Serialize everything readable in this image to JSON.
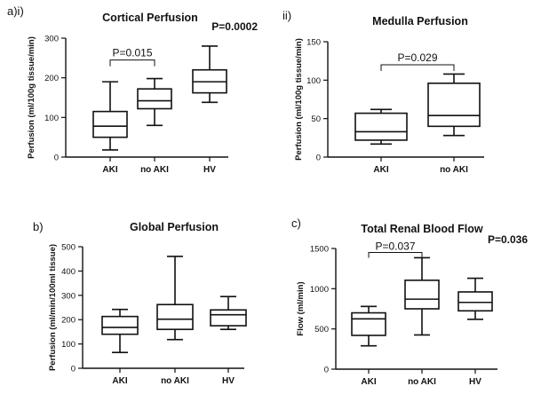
{
  "chart_data": [
    {
      "id": "cortical",
      "type": "box",
      "panel_letter": "a)i)",
      "title": "Cortical Perfusion",
      "ylabel": "Perfusion (ml/100g tissue/min)",
      "ylim": [
        0,
        300
      ],
      "yticks": [
        0,
        100,
        200,
        300
      ],
      "categories": [
        "AKI",
        "no AKI",
        "HV"
      ],
      "boxes": [
        {
          "min": 18,
          "q1": 50,
          "median": 78,
          "q3": 115,
          "max": 190
        },
        {
          "min": 80,
          "q1": 122,
          "median": 142,
          "q3": 172,
          "max": 198
        },
        {
          "min": 138,
          "q1": 162,
          "median": 190,
          "q3": 220,
          "max": 280
        }
      ],
      "brackets": [
        {
          "from": 0,
          "to": 1,
          "y": 245,
          "label": "P=0.015"
        }
      ],
      "corner_pvalue": "P=0.0002"
    },
    {
      "id": "medulla",
      "type": "box",
      "panel_letter": "ii)",
      "title": "Medulla Perfusion",
      "ylabel": "Perfusion (ml/100g tissue/min)",
      "ylim": [
        0,
        150
      ],
      "yticks": [
        0,
        50,
        100,
        150
      ],
      "categories": [
        "AKI",
        "no AKI"
      ],
      "boxes": [
        {
          "min": 17,
          "q1": 22,
          "median": 33,
          "q3": 57,
          "max": 62
        },
        {
          "min": 28,
          "q1": 40,
          "median": 54,
          "q3": 96,
          "max": 108
        }
      ],
      "brackets": [
        {
          "from": 0,
          "to": 1,
          "y": 120,
          "label": "P=0.029"
        }
      ],
      "corner_pvalue": ""
    },
    {
      "id": "global",
      "type": "box",
      "panel_letter": "b)",
      "title": "Global Perfusion",
      "ylabel": "Perfusion (ml/min/100ml tissue)",
      "ylim": [
        0,
        500
      ],
      "yticks": [
        0,
        100,
        200,
        300,
        400,
        500
      ],
      "categories": [
        "AKI",
        "no AKI",
        "HV"
      ],
      "boxes": [
        {
          "min": 65,
          "q1": 140,
          "median": 168,
          "q3": 213,
          "max": 242
        },
        {
          "min": 118,
          "q1": 160,
          "median": 202,
          "q3": 262,
          "max": 460
        },
        {
          "min": 160,
          "q1": 175,
          "median": 220,
          "q3": 240,
          "max": 295
        }
      ],
      "brackets": [],
      "corner_pvalue": ""
    },
    {
      "id": "trbf",
      "type": "box",
      "panel_letter": "c)",
      "title": "Total Renal Blood Flow",
      "ylabel": "Flow (ml/min)",
      "ylim": [
        0,
        1500
      ],
      "yticks": [
        0,
        500,
        1000,
        1500
      ],
      "categories": [
        "AKI",
        "no AKI",
        "HV"
      ],
      "boxes": [
        {
          "min": 290,
          "q1": 420,
          "median": 625,
          "q3": 700,
          "max": 780
        },
        {
          "min": 425,
          "q1": 750,
          "median": 870,
          "q3": 1105,
          "max": 1385
        },
        {
          "min": 620,
          "q1": 725,
          "median": 830,
          "q3": 960,
          "max": 1130
        }
      ],
      "brackets": [
        {
          "from": 0,
          "to": 1,
          "y": 1450,
          "label": "P=0.037"
        }
      ],
      "corner_pvalue": "P=0.036"
    }
  ]
}
